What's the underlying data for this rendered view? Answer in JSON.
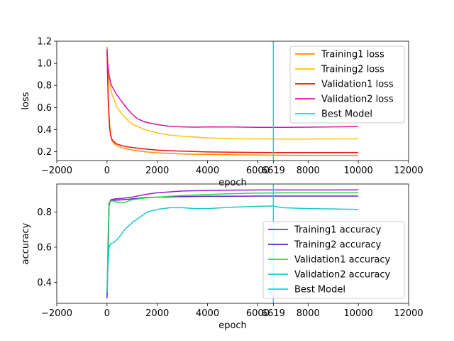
{
  "chart_data": [
    {
      "type": "line",
      "xlabel": "epoch",
      "ylabel": "loss",
      "xlim": [
        -2000,
        12000
      ],
      "ylim": [
        0.12,
        1.2
      ],
      "xticks": [
        "−2000",
        "0",
        "2000",
        "4000",
        "6000",
        "8000",
        "10000",
        "12000"
      ],
      "xtick_values": [
        -2000,
        0,
        2000,
        4000,
        6000,
        8000,
        10000,
        12000
      ],
      "yticks": [
        "0.2",
        "0.4",
        "0.6",
        "0.8",
        "1.0",
        "1.2"
      ],
      "ytick_values": [
        0.2,
        0.4,
        0.6,
        0.8,
        1.0,
        1.2
      ],
      "best_model_epoch": 6619,
      "best_model_label": "6619",
      "legend_position": "top-right",
      "series": [
        {
          "name": "Training1 loss",
          "color": "#ff8c00",
          "x": [
            0,
            50,
            100,
            150,
            200,
            300,
            400,
            600,
            800,
            1000,
            1500,
            2000,
            3000,
            4000,
            5000,
            6000,
            7000,
            8000,
            9000,
            10000
          ],
          "y": [
            1.15,
            0.7,
            0.45,
            0.35,
            0.3,
            0.27,
            0.255,
            0.235,
            0.225,
            0.215,
            0.2,
            0.19,
            0.18,
            0.175,
            0.172,
            0.17,
            0.168,
            0.167,
            0.166,
            0.165
          ]
        },
        {
          "name": "Training2 loss",
          "color": "#ffc20e",
          "x": [
            0,
            50,
            100,
            200,
            300,
            400,
            600,
            800,
            1000,
            1500,
            2000,
            2500,
            3000,
            4000,
            5000,
            6000,
            7000,
            8000,
            9000,
            10000
          ],
          "y": [
            1.1,
            0.9,
            0.82,
            0.72,
            0.66,
            0.6,
            0.54,
            0.49,
            0.45,
            0.4,
            0.37,
            0.35,
            0.34,
            0.325,
            0.318,
            0.316,
            0.315,
            0.315,
            0.316,
            0.316
          ]
        },
        {
          "name": "Validation1 loss",
          "color": "#ee1111",
          "x": [
            0,
            50,
            100,
            150,
            200,
            300,
            400,
            600,
            800,
            1000,
            1500,
            2000,
            3000,
            4000,
            5000,
            6000,
            7000,
            8000,
            9000,
            10000
          ],
          "y": [
            1.1,
            0.65,
            0.42,
            0.34,
            0.31,
            0.285,
            0.27,
            0.255,
            0.245,
            0.238,
            0.225,
            0.215,
            0.205,
            0.198,
            0.195,
            0.193,
            0.192,
            0.192,
            0.192,
            0.193
          ]
        },
        {
          "name": "Validation2 loss",
          "color": "#dd11aa",
          "x": [
            0,
            30,
            60,
            100,
            150,
            200,
            300,
            400,
            600,
            800,
            1000,
            1200,
            1500,
            2000,
            2500,
            3000,
            3500,
            4000,
            5000,
            6000,
            7000,
            8000,
            9000,
            10000
          ],
          "y": [
            1.13,
            1.0,
            0.93,
            0.87,
            0.82,
            0.79,
            0.75,
            0.71,
            0.65,
            0.59,
            0.54,
            0.5,
            0.47,
            0.445,
            0.43,
            0.425,
            0.422,
            0.425,
            0.424,
            0.42,
            0.42,
            0.422,
            0.425,
            0.428
          ]
        }
      ]
    },
    {
      "type": "line",
      "xlabel": "epoch",
      "ylabel": "accuracy",
      "xlim": [
        -2000,
        12000
      ],
      "ylim": [
        0.28,
        0.96
      ],
      "xticks": [
        "−2000",
        "0",
        "2000",
        "4000",
        "6000",
        "8000",
        "10000",
        "12000"
      ],
      "xtick_values": [
        -2000,
        0,
        2000,
        4000,
        6000,
        8000,
        10000,
        12000
      ],
      "yticks": [
        "0.4",
        "0.6",
        "0.8"
      ],
      "ytick_values": [
        0.4,
        0.6,
        0.8
      ],
      "best_model_epoch": 6619,
      "best_model_label": "6619",
      "legend_position": "bottom-right",
      "series": [
        {
          "name": "Training1 accuracy",
          "color": "#9b1bd6",
          "x": [
            0,
            50,
            80,
            150,
            300,
            600,
            1000,
            1500,
            2000,
            2500,
            3000,
            4000,
            5000,
            6000,
            7000,
            8000,
            9000,
            10000
          ],
          "y": [
            0.33,
            0.62,
            0.85,
            0.87,
            0.875,
            0.878,
            0.885,
            0.9,
            0.91,
            0.915,
            0.92,
            0.923,
            0.925,
            0.926,
            0.926,
            0.926,
            0.926,
            0.927
          ]
        },
        {
          "name": "Training2 accuracy",
          "color": "#5a1fd0",
          "x": [
            0,
            50,
            80,
            150,
            300,
            600,
            1000,
            1500,
            2000,
            3000,
            4000,
            5000,
            6000,
            7000,
            8000,
            9000,
            10000
          ],
          "y": [
            0.31,
            0.6,
            0.84,
            0.865,
            0.868,
            0.87,
            0.875,
            0.882,
            0.885,
            0.888,
            0.89,
            0.89,
            0.891,
            0.891,
            0.891,
            0.891,
            0.891
          ]
        },
        {
          "name": "Validation1 accuracy",
          "color": "#22dd44",
          "x": [
            0,
            40,
            80,
            120,
            200,
            300,
            500,
            700,
            1000,
            1500,
            2000,
            3000,
            4000,
            5000,
            6000,
            7000,
            8000,
            9000,
            10000
          ],
          "y": [
            0.35,
            0.65,
            0.83,
            0.86,
            0.865,
            0.86,
            0.855,
            0.855,
            0.87,
            0.88,
            0.885,
            0.895,
            0.9,
            0.905,
            0.908,
            0.91,
            0.91,
            0.91,
            0.91
          ]
        },
        {
          "name": "Validation2 accuracy",
          "color": "#1fc8c8",
          "x": [
            0,
            40,
            80,
            150,
            300,
            500,
            700,
            1000,
            1300,
            1600,
            2000,
            2500,
            3000,
            3500,
            4000,
            5000,
            6000,
            6600,
            7000,
            8000,
            9000,
            10000
          ],
          "y": [
            0.34,
            0.5,
            0.6,
            0.62,
            0.63,
            0.66,
            0.7,
            0.74,
            0.77,
            0.8,
            0.815,
            0.825,
            0.825,
            0.82,
            0.82,
            0.828,
            0.833,
            0.835,
            0.825,
            0.82,
            0.818,
            0.815
          ]
        }
      ]
    }
  ],
  "best_model_name": "Best Model",
  "best_model_color": "#00d8f0"
}
